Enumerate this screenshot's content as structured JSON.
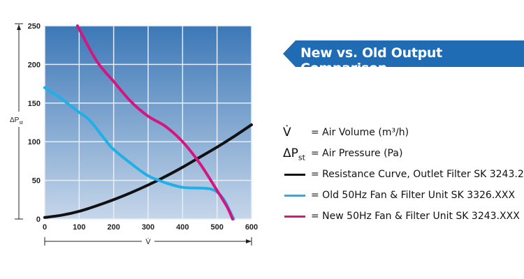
{
  "chart_data": {
    "type": "line",
    "title": "New vs. Old Output Comparison",
    "xlabel": "V̇",
    "ylabel": "ΔPst",
    "xlim": [
      0,
      600
    ],
    "ylim": [
      0,
      250
    ],
    "xticks": [
      0,
      100,
      200,
      300,
      400,
      500,
      600
    ],
    "yticks": [
      0,
      50,
      100,
      150,
      200,
      250
    ],
    "grid": true,
    "series": [
      {
        "name": "Resistance Curve, Outlet Filter SK 3243.200",
        "color": "#111111",
        "x": [
          0,
          50,
          100,
          150,
          200,
          250,
          300,
          350,
          400,
          450,
          500,
          550,
          600
        ],
        "y": [
          2,
          5,
          10,
          17,
          25,
          34,
          44,
          55,
          67,
          80,
          93,
          107,
          122
        ]
      },
      {
        "name": "Old 50Hz Fan & Filter Unit SK 3326.XXX",
        "color": "#1fb0e6",
        "x": [
          0,
          50,
          100,
          130,
          180,
          200,
          250,
          300,
          350,
          400,
          450,
          480,
          500,
          520,
          535,
          548
        ],
        "y": [
          170,
          155,
          138,
          128,
          100,
          90,
          72,
          56,
          47,
          41,
          40,
          39,
          35,
          25,
          12,
          0
        ]
      },
      {
        "name": "New 50Hz Fan & Filter Unit SK 3243.XXX",
        "color": "#d6167f",
        "x": [
          95,
          150,
          200,
          250,
          300,
          350,
          400,
          450,
          500,
          530,
          545
        ],
        "y": [
          250,
          205,
          178,
          152,
          133,
          120,
          100,
          72,
          37,
          15,
          0
        ]
      }
    ]
  },
  "legend": {
    "v_symbol": "V̇",
    "v_text": "= Air Volume (m³/h)",
    "p_symbol": "ΔP",
    "p_sub": "st",
    "p_text": "= Air Pressure (Pa)",
    "items": [
      "= Resistance Curve, Outlet Filter SK 3243.200",
      "= Old 50Hz Fan & Filter Unit SK 3326.XXX",
      "= New 50Hz Fan & Filter Unit SK 3243.XXX"
    ]
  },
  "colors": {
    "resistance": "#111111",
    "old": "#1fb0e6",
    "new": "#d6167f"
  }
}
